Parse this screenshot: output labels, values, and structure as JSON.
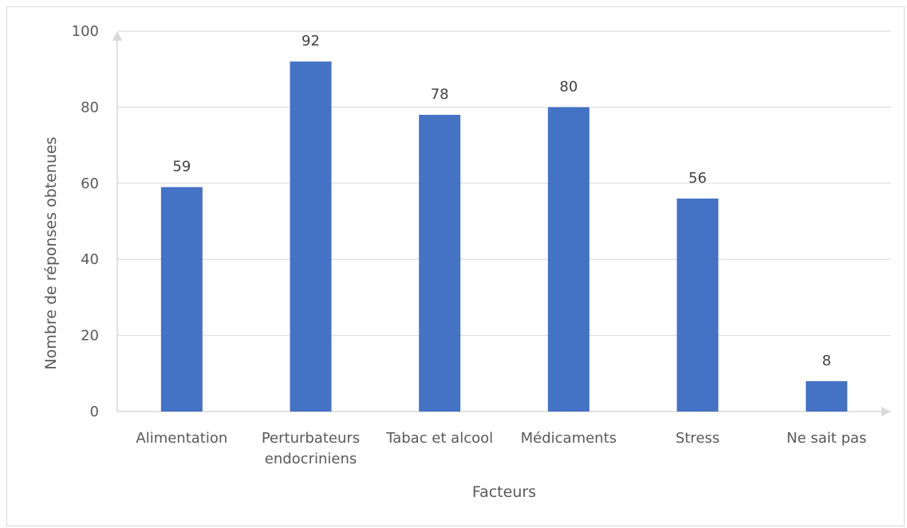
{
  "chart_data": {
    "type": "bar",
    "categories": [
      [
        "Alimentation"
      ],
      [
        "Perturbateurs",
        "endocriniens"
      ],
      [
        "Tabac et alcool"
      ],
      [
        "Médicaments"
      ],
      [
        "Stress"
      ],
      [
        "Ne sait pas"
      ]
    ],
    "values": [
      59,
      92,
      78,
      80,
      56,
      8
    ],
    "title": "",
    "xlabel": "Facteurs",
    "ylabel": "Nombre de réponses obtenues",
    "ylim": [
      0,
      100
    ],
    "yticks": [
      0,
      20,
      40,
      60,
      80,
      100
    ],
    "grid": true,
    "legend": "none",
    "bar_color": "#4472c4",
    "grid_color": "#d9d9d9",
    "axis_color": "#d9d9d9"
  }
}
